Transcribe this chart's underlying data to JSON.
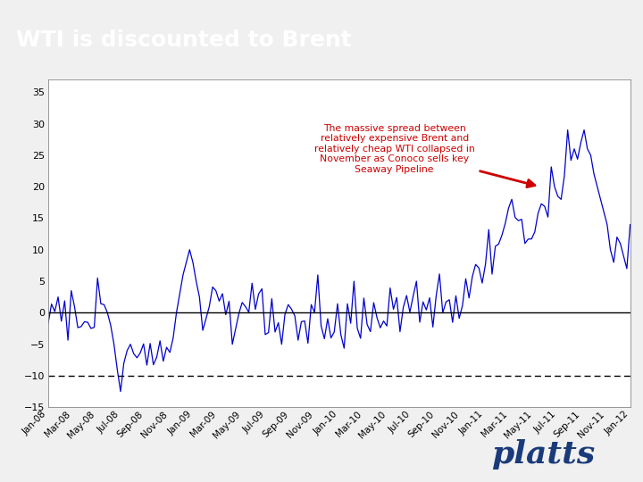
{
  "title": "WTI is discounted to Brent",
  "title_bg_top": "#1565b0",
  "title_bg_bottom": "#1a5fa8",
  "title_text_color": "#ffffff",
  "green_bar_color": "#1e6e35",
  "chart_bg_color": "#ffffff",
  "outer_bg_color": "#f0f0f0",
  "line_color": "#0000cc",
  "zero_line_color": "#000000",
  "dashed_line_y": -10,
  "dashed_line_color": "#000000",
  "ylim": [
    -15,
    37
  ],
  "yticks": [
    -15,
    -10,
    -5,
    0,
    5,
    10,
    15,
    20,
    25,
    30,
    35
  ],
  "annotation_text": "The massive spread between\nrelatively expensive Brent and\nrelatively cheap WTI collapsed in\nNovember as Conoco sells key\nSeaway Pipeline",
  "annotation_color": "#cc0000",
  "arrow_color": "#cc0000",
  "xtick_labels": [
    "Jan-08",
    "Mar-08",
    "May-08",
    "Jul-08",
    "Sep-08",
    "Nov-08",
    "Jan-09",
    "Mar-09",
    "May-09",
    "Jul-09",
    "Sep-09",
    "Nov-09",
    "Jan-10",
    "Mar-10",
    "May-10",
    "Jul-10",
    "Sep-10",
    "Nov-10",
    "Jan-11",
    "Mar-11",
    "May-11",
    "Jul-11",
    "Sep-11",
    "Nov-11",
    "Jan-12"
  ]
}
